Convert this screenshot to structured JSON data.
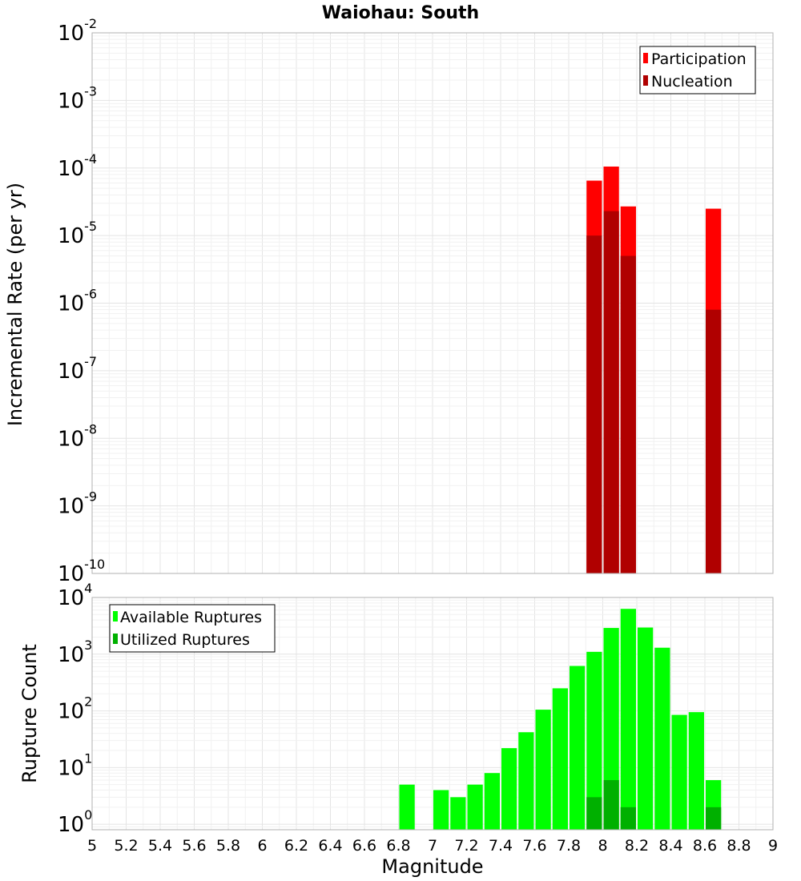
{
  "chart_data": [
    {
      "type": "bar",
      "id": "rate",
      "title": "Waiohau: South",
      "xlabel": "Magnitude",
      "ylabel": "Incremental Rate (per yr)",
      "yscale": "log",
      "ylim": [
        1e-10,
        0.01
      ],
      "xlim": [
        5,
        9
      ],
      "bin_width": 0.1,
      "y_ticks": [
        {
          "base": "10",
          "exp": "-10",
          "value": 1e-10
        },
        {
          "base": "10",
          "exp": "-9",
          "value": 1e-09
        },
        {
          "base": "10",
          "exp": "-8",
          "value": 1e-08
        },
        {
          "base": "10",
          "exp": "-7",
          "value": 1e-07
        },
        {
          "base": "10",
          "exp": "-6",
          "value": 1e-06
        },
        {
          "base": "10",
          "exp": "-5",
          "value": 1e-05
        },
        {
          "base": "10",
          "exp": "-4",
          "value": 0.0001
        },
        {
          "base": "10",
          "exp": "-3",
          "value": 0.001
        },
        {
          "base": "10",
          "exp": "-2",
          "value": 0.01
        }
      ],
      "legend": {
        "placement": "top-right",
        "entries": [
          "Participation",
          "Nucleation"
        ]
      },
      "series": [
        {
          "name": "Participation",
          "color": "#ff0000",
          "x": [
            7.95,
            8.05,
            8.15,
            8.65
          ],
          "values": [
            6.5e-05,
            0.000105,
            2.7e-05,
            2.5e-05
          ]
        },
        {
          "name": "Nucleation",
          "color": "#b00000",
          "x": [
            7.95,
            8.05,
            8.15,
            8.65
          ],
          "values": [
            1e-05,
            2.3e-05,
            5e-06,
            8e-07
          ]
        }
      ]
    },
    {
      "type": "bar",
      "id": "count",
      "xlabel": "Magnitude",
      "ylabel": "Rupture Count",
      "yscale": "log",
      "ylim": [
        0.8,
        10000
      ],
      "xlim": [
        5,
        9
      ],
      "bin_width": 0.1,
      "y_ticks": [
        {
          "base": "10",
          "exp": "0",
          "value": 1
        },
        {
          "base": "10",
          "exp": "1",
          "value": 10
        },
        {
          "base": "10",
          "exp": "2",
          "value": 100
        },
        {
          "base": "10",
          "exp": "3",
          "value": 1000
        },
        {
          "base": "10",
          "exp": "4",
          "value": 10000
        }
      ],
      "x_tick_labels": [
        "5",
        "5.2",
        "5.4",
        "5.6",
        "5.8",
        "6",
        "6.2",
        "6.4",
        "6.6",
        "6.8",
        "7",
        "7.2",
        "7.4",
        "7.6",
        "7.8",
        "8",
        "8.2",
        "8.4",
        "8.6",
        "8.8",
        "9"
      ],
      "legend": {
        "placement": "top-left",
        "entries": [
          "Available Ruptures",
          "Utilized Ruptures"
        ]
      },
      "series": [
        {
          "name": "Available Ruptures",
          "color": "#00ff00",
          "x": [
            6.85,
            7.05,
            7.15,
            7.25,
            7.35,
            7.45,
            7.55,
            7.65,
            7.75,
            7.85,
            7.95,
            8.05,
            8.15,
            8.25,
            8.35,
            8.45,
            8.55,
            8.65
          ],
          "values": [
            5,
            4,
            3,
            5,
            8,
            22,
            42,
            105,
            250,
            620,
            1100,
            2900,
            6300,
            2950,
            1300,
            85,
            95,
            6
          ]
        },
        {
          "name": "Utilized Ruptures",
          "color": "#00b000",
          "x": [
            7.95,
            8.05,
            8.15,
            8.65
          ],
          "values": [
            3,
            6,
            2,
            2
          ]
        }
      ]
    }
  ]
}
